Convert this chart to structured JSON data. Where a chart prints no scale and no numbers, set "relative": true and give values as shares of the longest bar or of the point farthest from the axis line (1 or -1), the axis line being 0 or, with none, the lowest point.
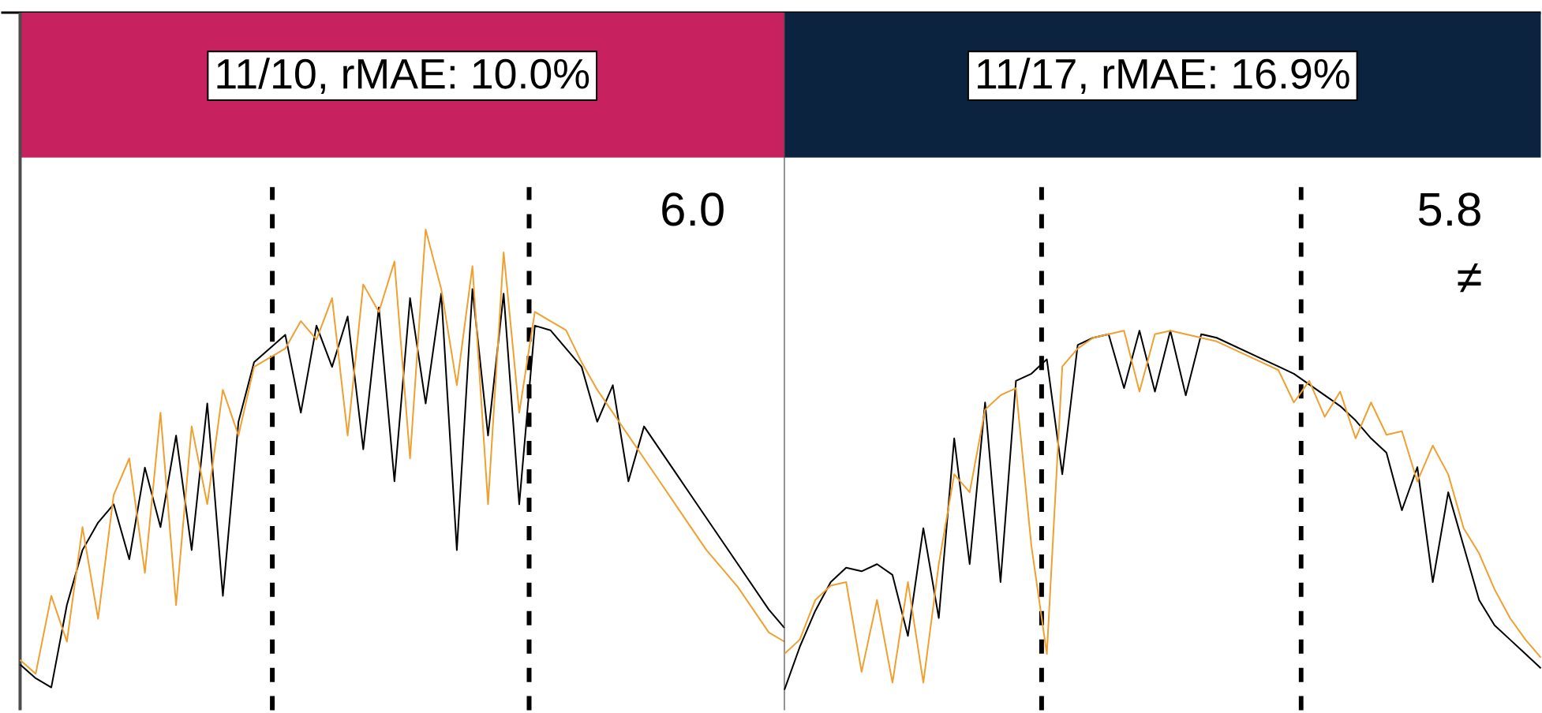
{
  "chart_data": [
    {
      "type": "line",
      "title": "11/10, rMAE: 10.0%",
      "relative": true,
      "categories": [
        null,
        null,
        null,
        null,
        null,
        null,
        null,
        null,
        null,
        null,
        null,
        null,
        null,
        null,
        null,
        null,
        null,
        null,
        null,
        null,
        null,
        null,
        null,
        null,
        null,
        null,
        null,
        null,
        null,
        null,
        null,
        null,
        null,
        null,
        null,
        null,
        null,
        null,
        null,
        null,
        null,
        null,
        null,
        null,
        null,
        null,
        null,
        null,
        null,
        null
      ],
      "series": [
        {
          "color": "#000000",
          "values": [
            0.05,
            0.02,
            0.0,
            0.18,
            0.3,
            0.36,
            0.4,
            0.28,
            0.48,
            0.35,
            0.55,
            0.3,
            0.62,
            0.2,
            0.58,
            0.71,
            0.74,
            0.77,
            0.6,
            0.79,
            0.7,
            0.81,
            0.52,
            0.83,
            0.45,
            0.85,
            0.62,
            0.86,
            0.3,
            0.87,
            0.55,
            0.86,
            0.4,
            0.79,
            0.78,
            0.74,
            0.7,
            0.58,
            0.66,
            0.45,
            0.57,
            0.52,
            0.47,
            0.42,
            0.37,
            0.32,
            0.27,
            0.22,
            0.17,
            0.13
          ]
        },
        {
          "color": "#f0a030",
          "values": [
            0.06,
            0.03,
            0.2,
            0.1,
            0.35,
            0.15,
            0.42,
            0.5,
            0.25,
            0.6,
            0.18,
            0.57,
            0.4,
            0.65,
            0.55,
            0.7,
            0.72,
            0.74,
            0.8,
            0.76,
            0.85,
            0.55,
            0.88,
            0.82,
            0.93,
            0.5,
            1.0,
            0.87,
            0.66,
            0.92,
            0.4,
            0.95,
            0.6,
            0.82,
            0.8,
            0.78,
            0.71,
            0.65,
            0.6,
            0.55,
            0.5,
            0.45,
            0.4,
            0.35,
            0.3,
            0.26,
            0.22,
            0.17,
            0.12,
            0.1
          ]
        }
      ],
      "annotations": [
        "6.0"
      ]
    },
    {
      "type": "line",
      "title": "11/17, rMAE: 16.9%",
      "relative": true,
      "categories": [
        null,
        null,
        null,
        null,
        null,
        null,
        null,
        null,
        null,
        null,
        null,
        null,
        null,
        null,
        null,
        null,
        null,
        null,
        null,
        null,
        null,
        null,
        null,
        null,
        null,
        null,
        null,
        null,
        null,
        null,
        null,
        null,
        null,
        null,
        null,
        null,
        null,
        null,
        null,
        null,
        null,
        null,
        null,
        null,
        null,
        null,
        null,
        null,
        null,
        null
      ],
      "series": [
        {
          "color": "#000000",
          "values": [
            0.0,
            0.12,
            0.22,
            0.3,
            0.34,
            0.33,
            0.35,
            0.32,
            0.15,
            0.45,
            0.2,
            0.7,
            0.35,
            0.8,
            0.3,
            0.86,
            0.88,
            0.92,
            0.6,
            0.96,
            0.98,
            0.99,
            0.84,
            1.0,
            0.83,
            1.0,
            0.82,
            0.99,
            0.98,
            0.96,
            0.94,
            0.92,
            0.9,
            0.88,
            0.85,
            0.82,
            0.79,
            0.75,
            0.7,
            0.66,
            0.5,
            0.62,
            0.3,
            0.55,
            0.4,
            0.25,
            0.18,
            0.14,
            0.1,
            0.06
          ]
        },
        {
          "color": "#f0a030",
          "values": [
            0.1,
            0.14,
            0.25,
            0.29,
            0.3,
            0.05,
            0.25,
            0.02,
            0.3,
            0.02,
            0.35,
            0.6,
            0.55,
            0.78,
            0.82,
            0.84,
            0.4,
            0.1,
            0.9,
            0.95,
            0.98,
            0.99,
            1.0,
            0.83,
            0.99,
            1.0,
            0.99,
            0.98,
            0.97,
            0.95,
            0.93,
            0.91,
            0.89,
            0.8,
            0.86,
            0.76,
            0.83,
            0.7,
            0.8,
            0.71,
            0.72,
            0.58,
            0.68,
            0.6,
            0.45,
            0.38,
            0.28,
            0.2,
            0.14,
            0.09
          ]
        }
      ],
      "annotations": [
        "5.8",
        "≠"
      ]
    }
  ]
}
